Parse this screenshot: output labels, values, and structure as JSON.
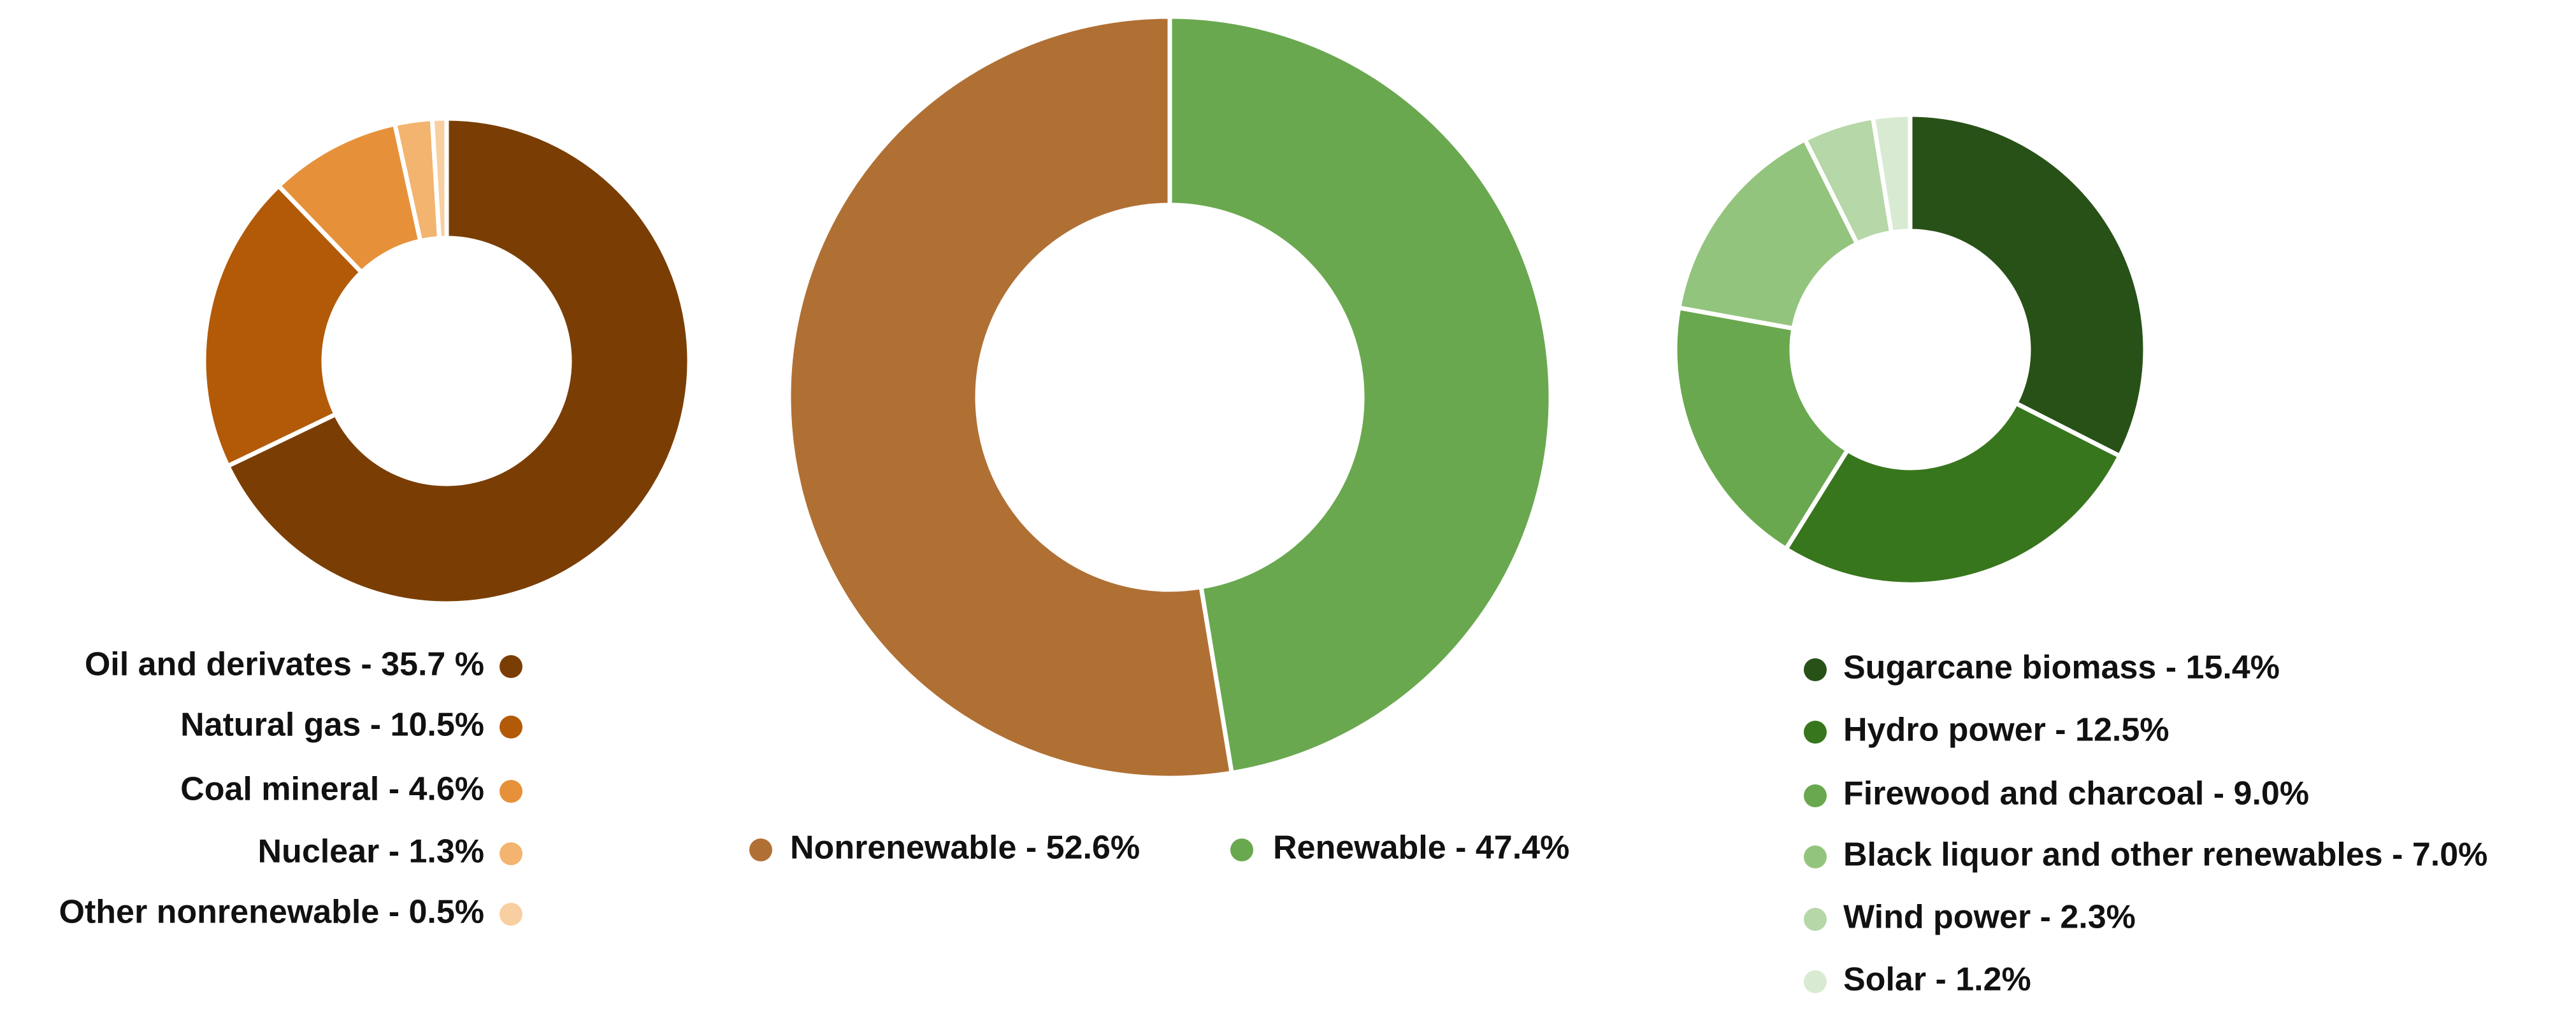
{
  "chart_data": [
    {
      "type": "donut",
      "clockwise": true,
      "categories": [
        "Oil and derivates - 35.7 %",
        "Natural gas - 10.5%",
        "Coal mineral  - 4.6%",
        "Nuclear - 1.3%",
        "Other nonrenewable - 0.5%"
      ],
      "values": [
        35.7,
        10.5,
        4.6,
        1.3,
        0.5
      ],
      "colors": [
        "#7a3e04",
        "#b35a08",
        "#e6913a",
        "#f2b46e",
        "#f8cfa0"
      ]
    },
    {
      "type": "donut",
      "clockwise": false,
      "categories": [
        "Nonrenewable - 52.6%",
        "Renewable - 47.4%"
      ],
      "values": [
        52.6,
        47.4
      ],
      "colors": [
        "#b07034",
        "#6aa84f"
      ]
    },
    {
      "type": "donut",
      "clockwise": true,
      "categories": [
        "Sugarcane biomass - 15.4%",
        "Hydro power - 12.5%",
        "Firewood and charcoal - 9.0%",
        "Black liquor and other renewables - 7.0%",
        "Wind power - 2.3%",
        "Solar - 1.2%"
      ],
      "values": [
        15.4,
        12.5,
        9.0,
        7.0,
        2.3,
        1.2
      ],
      "colors": [
        "#285117",
        "#38761d",
        "#6aa84f",
        "#93c47d",
        "#b6d7a8",
        "#d9ead3"
      ]
    }
  ]
}
